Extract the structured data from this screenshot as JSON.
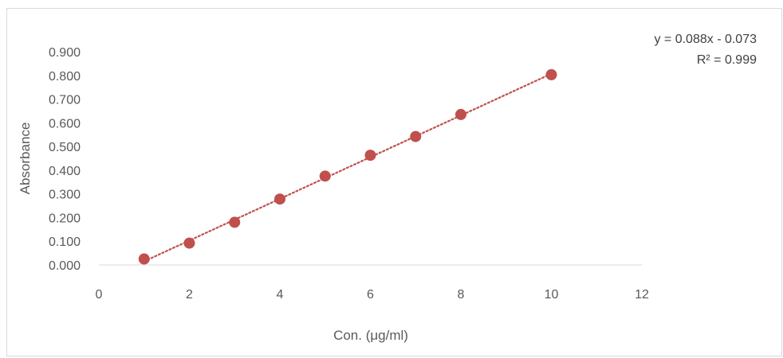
{
  "chart_data": {
    "type": "scatter",
    "xlabel": "Con. (μg/ml)",
    "ylabel": "Absorbance",
    "xlim": [
      0,
      12
    ],
    "ylim": [
      0,
      0.9
    ],
    "x_ticks": [
      "0",
      "2",
      "4",
      "6",
      "8",
      "10",
      "12"
    ],
    "y_ticks": [
      "0.000",
      "0.100",
      "0.200",
      "0.300",
      "0.400",
      "0.500",
      "0.600",
      "0.700",
      "0.800",
      "0.900"
    ],
    "grid": false,
    "series": [
      {
        "x": [
          1,
          2,
          3,
          4,
          5,
          6,
          7,
          8,
          10
        ],
        "y": [
          0.025,
          0.092,
          0.18,
          0.278,
          0.375,
          0.463,
          0.542,
          0.635,
          0.803
        ],
        "marker_color": "#c0504d"
      }
    ],
    "trendline": {
      "type": "linear",
      "slope": 0.088,
      "intercept": -0.073,
      "style": "dotted",
      "color": "#c0504d",
      "x_range": [
        1,
        10
      ]
    },
    "annotations": {
      "equation": "y = 0.088x - 0.073",
      "r_squared": "R² = 0.999"
    }
  }
}
